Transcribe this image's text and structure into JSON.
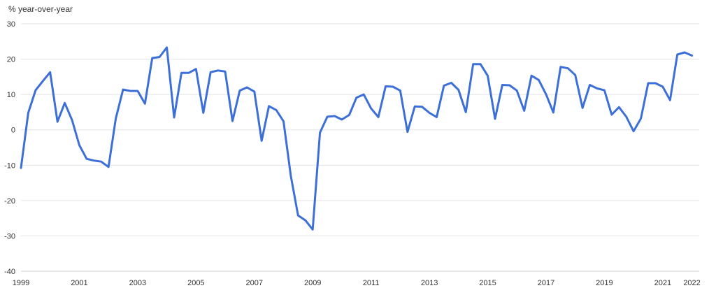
{
  "chart_data": {
    "type": "line",
    "title": "",
    "ylabel": "% year-over-year",
    "xlabel": "",
    "ylim": [
      -40,
      30
    ],
    "xlim": [
      1999.0,
      2022.25
    ],
    "yticks": [
      30,
      20,
      10,
      0,
      -10,
      -20,
      -30,
      -40
    ],
    "xticks": [
      1999,
      2001,
      2003,
      2005,
      2007,
      2009,
      2011,
      2013,
      2015,
      2017,
      2019,
      2021,
      2022
    ],
    "grid": true,
    "legend": "none",
    "colors": {
      "series": "#3c6fd8",
      "grid": "#e3e3e3"
    },
    "series": [
      {
        "x": [
          1999.0,
          1999.25,
          1999.5,
          1999.75,
          2000.0,
          2000.25,
          2000.5,
          2000.75,
          2001.0,
          2001.25,
          2001.5,
          2001.75,
          2002.0,
          2002.25,
          2002.5,
          2002.75,
          2003.0,
          2003.25,
          2003.5,
          2003.75,
          2004.0,
          2004.25,
          2004.5,
          2004.75,
          2005.0,
          2005.25,
          2005.5,
          2005.75,
          2006.0,
          2006.25,
          2006.5,
          2006.75,
          2007.0,
          2007.25,
          2007.5,
          2007.75,
          2008.0,
          2008.25,
          2008.5,
          2008.75,
          2009.0,
          2009.25,
          2009.5,
          2009.75,
          2010.0,
          2010.25,
          2010.5,
          2010.75,
          2011.0,
          2011.25,
          2011.5,
          2011.75,
          2012.0,
          2012.25,
          2012.5,
          2012.75,
          2013.0,
          2013.25,
          2013.5,
          2013.75,
          2014.0,
          2014.25,
          2014.5,
          2014.75,
          2015.0,
          2015.25,
          2015.5,
          2015.75,
          2016.0,
          2016.25,
          2016.5,
          2016.75,
          2017.0,
          2017.25,
          2017.5,
          2017.75,
          2018.0,
          2018.25,
          2018.5,
          2018.75,
          2019.0,
          2019.25,
          2019.5,
          2019.75,
          2020.0,
          2020.25,
          2020.5,
          2020.75,
          2021.0,
          2021.25,
          2021.5,
          2021.75,
          2022.0
        ],
        "values": [
          -10.8,
          4.8,
          11.2,
          13.8,
          16.3,
          2.3,
          7.6,
          2.8,
          -4.3,
          -8.2,
          -8.7,
          -9.0,
          -10.5,
          3.2,
          11.4,
          11.0,
          11.0,
          7.4,
          20.3,
          20.6,
          23.3,
          3.5,
          16.1,
          16.1,
          17.2,
          4.8,
          16.3,
          16.8,
          16.5,
          2.5,
          11.1,
          12.0,
          10.8,
          -3.1,
          6.7,
          5.6,
          2.4,
          -13.0,
          -24.2,
          -25.6,
          -28.2,
          -0.8,
          3.7,
          3.9,
          2.9,
          4.2,
          9.1,
          10.0,
          6.1,
          3.6,
          12.3,
          12.2,
          11.1,
          -0.6,
          6.6,
          6.5,
          4.8,
          3.6,
          12.5,
          13.3,
          11.3,
          5.0,
          18.6,
          18.6,
          15.3,
          3.1,
          12.7,
          12.6,
          11.1,
          5.4,
          15.3,
          14.1,
          10.0,
          4.9,
          17.8,
          17.4,
          15.5,
          6.2,
          12.7,
          11.7,
          11.2,
          4.3,
          6.4,
          3.7,
          -0.4,
          3.2,
          13.2,
          13.2,
          12.2,
          8.4,
          21.3,
          21.9,
          21.0
        ]
      }
    ]
  }
}
